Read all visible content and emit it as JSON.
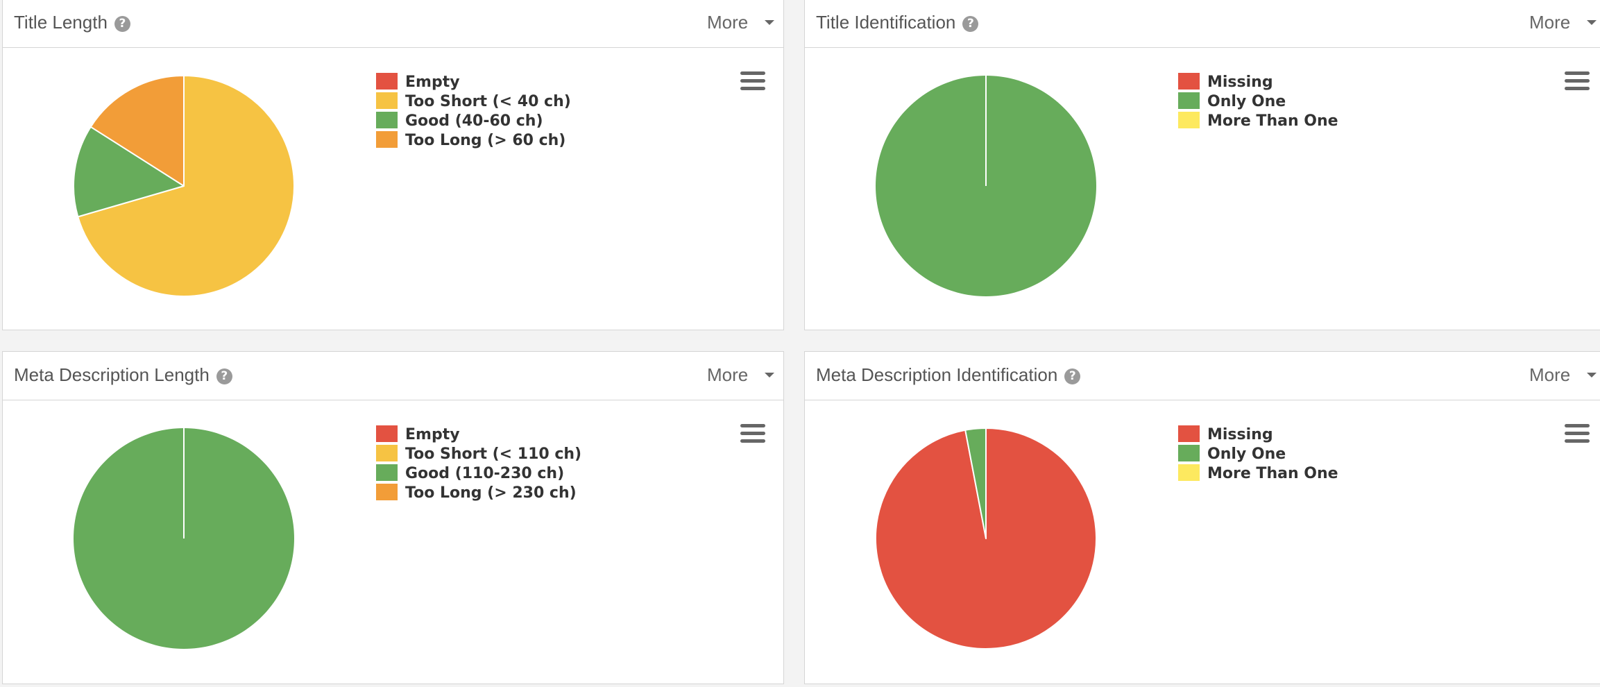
{
  "panels": [
    {
      "title": "Title Length",
      "more_label": "More",
      "chart_data": {
        "type": "pie",
        "categories": [
          "Empty",
          "Too Short (< 40 ch)",
          "Good (40-60 ch)",
          "Too Long (> 60 ch)"
        ],
        "values": [
          0,
          70.5,
          13.5,
          16
        ],
        "colors": [
          "#e35241",
          "#f6c343",
          "#67ac5b",
          "#f29d38"
        ],
        "legend_position": "right"
      }
    },
    {
      "title": "Title Identification",
      "more_label": "More",
      "chart_data": {
        "type": "pie",
        "categories": [
          "Missing",
          "Only One",
          "More Than One"
        ],
        "values": [
          0,
          100,
          0
        ],
        "colors": [
          "#e35241",
          "#67ac5b",
          "#fde95f"
        ],
        "legend_position": "right"
      }
    },
    {
      "title": "Meta Description Length",
      "more_label": "More",
      "chart_data": {
        "type": "pie",
        "categories": [
          "Empty",
          "Too Short (< 110 ch)",
          "Good (110-230 ch)",
          "Too Long (> 230 ch)"
        ],
        "values": [
          0,
          0,
          100,
          0
        ],
        "colors": [
          "#e35241",
          "#f6c343",
          "#67ac5b",
          "#f29d38"
        ],
        "legend_position": "right"
      }
    },
    {
      "title": "Meta Description Identification",
      "more_label": "More",
      "chart_data": {
        "type": "pie",
        "categories": [
          "Missing",
          "Only One",
          "More Than One"
        ],
        "values": [
          97,
          3,
          0
        ],
        "colors": [
          "#e35241",
          "#67ac5b",
          "#fde95f"
        ],
        "legend_position": "right"
      }
    }
  ]
}
